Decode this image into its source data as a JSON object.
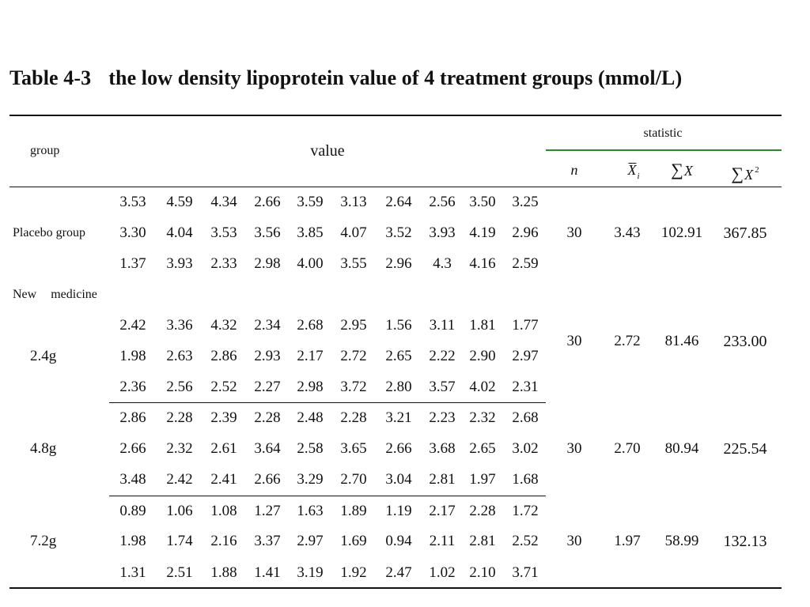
{
  "title": {
    "number": "Table 4-3",
    "text": "the low density lipoprotein value of 4 treatment groups (mmol/L)"
  },
  "header": {
    "group": "group",
    "value": "value",
    "statistic": "statistic",
    "n": "n",
    "mean_symbol": "X",
    "mean_subscript": "i",
    "sum_symbol": "∑",
    "sum_x": "X",
    "sum_x2": "X",
    "sum_x2_sup": "2"
  },
  "new_medicine_label": {
    "part1": "New",
    "part2": "medicine"
  },
  "groups": [
    {
      "label": "Placebo group",
      "values": [
        [
          "3.53",
          "4.59",
          "4.34",
          "2.66",
          "3.59",
          "3.13",
          "2.64",
          "2.56",
          "3.50",
          "3.25"
        ],
        [
          "3.30",
          "4.04",
          "3.53",
          "3.56",
          "3.85",
          "4.07",
          "3.52",
          "3.93",
          "4.19",
          "2.96"
        ],
        [
          "1.37",
          "3.93",
          "2.33",
          "2.98",
          "4.00",
          "3.55",
          "2.96",
          "4.3",
          "4.16",
          "2.59"
        ]
      ],
      "n": "30",
      "mean": "3.43",
      "sum": "102.91",
      "sum_sq": "367.85"
    },
    {
      "label": "2.4g",
      "values": [
        [
          "2.42",
          "3.36",
          "4.32",
          "2.34",
          "2.68",
          "2.95",
          "1.56",
          "3.11",
          "1.81",
          "1.77"
        ],
        [
          "1.98",
          "2.63",
          "2.86",
          "2.93",
          "2.17",
          "2.72",
          "2.65",
          "2.22",
          "2.90",
          "2.97"
        ],
        [
          "2.36",
          "2.56",
          "2.52",
          "2.27",
          "2.98",
          "3.72",
          "2.80",
          "3.57",
          "4.02",
          "2.31"
        ]
      ],
      "n": "30",
      "mean": "2.72",
      "sum": "81.46",
      "sum_sq": "233.00"
    },
    {
      "label": "4.8g",
      "values": [
        [
          "2.86",
          "2.28",
          "2.39",
          "2.28",
          "2.48",
          "2.28",
          "3.21",
          "2.23",
          "2.32",
          "2.68"
        ],
        [
          "2.66",
          "2.32",
          "2.61",
          "3.64",
          "2.58",
          "3.65",
          "2.66",
          "3.68",
          "2.65",
          "3.02"
        ],
        [
          "3.48",
          "2.42",
          "2.41",
          "2.66",
          "3.29",
          "2.70",
          "3.04",
          "2.81",
          "1.97",
          "1.68"
        ]
      ],
      "n": "30",
      "mean": "2.70",
      "sum": "80.94",
      "sum_sq": "225.54"
    },
    {
      "label": "7.2g",
      "values": [
        [
          "0.89",
          "1.06",
          "1.08",
          "1.27",
          "1.63",
          "1.89",
          "1.19",
          "2.17",
          "2.28",
          "1.72"
        ],
        [
          "1.98",
          "1.74",
          "2.16",
          "3.37",
          "2.97",
          "1.69",
          "0.94",
          "2.11",
          "2.81",
          "2.52"
        ],
        [
          "1.31",
          "2.51",
          "1.88",
          "1.41",
          "3.19",
          "1.92",
          "2.47",
          "1.02",
          "2.10",
          "3.71"
        ]
      ],
      "n": "30",
      "mean": "1.97",
      "sum": "58.99",
      "sum_sq": "132.13"
    }
  ]
}
